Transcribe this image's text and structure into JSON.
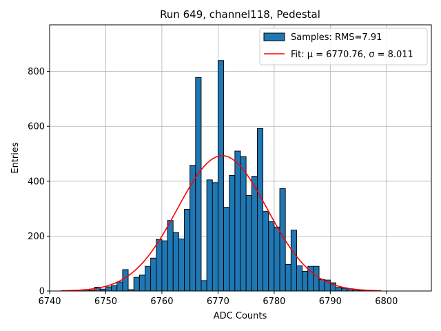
{
  "chart_data": {
    "type": "histogram",
    "title": "Run 649, channel118, Pedestal",
    "xlabel": "ADC Counts",
    "ylabel": "Entries",
    "xlim": [
      6740,
      6808
    ],
    "ylim": [
      0,
      970
    ],
    "xticks": [
      6740,
      6750,
      6760,
      6770,
      6780,
      6790,
      6800
    ],
    "yticks": [
      0,
      200,
      400,
      600,
      800
    ],
    "grid": true,
    "legend_position": "top-right",
    "bar_color": "#1f77b4",
    "fit_color": "#ff0000",
    "bins": {
      "start": 6742,
      "width": 1,
      "counts": [
        0,
        0,
        0,
        0,
        1,
        3,
        14,
        7,
        15,
        20,
        33,
        78,
        5,
        50,
        58,
        90,
        120,
        188,
        183,
        257,
        213,
        190,
        298,
        458,
        778,
        38,
        405,
        395,
        840,
        305,
        421,
        510,
        490,
        348,
        418,
        592,
        290,
        253,
        233,
        373,
        97,
        222,
        92,
        72,
        90,
        90,
        42,
        40,
        30,
        13,
        10,
        8,
        5,
        3,
        2,
        1,
        1,
        0,
        0,
        0,
        0,
        0,
        0
      ]
    },
    "series": [
      {
        "name": "Samples: RMS=7.91",
        "kind": "bars"
      },
      {
        "name": "Fit: μ = 6770.76, σ = 8.011",
        "kind": "gaussian",
        "mu": 6770.76,
        "sigma": 8.011,
        "amplitude": 493,
        "x_range": [
          6742,
          6799
        ]
      }
    ]
  }
}
